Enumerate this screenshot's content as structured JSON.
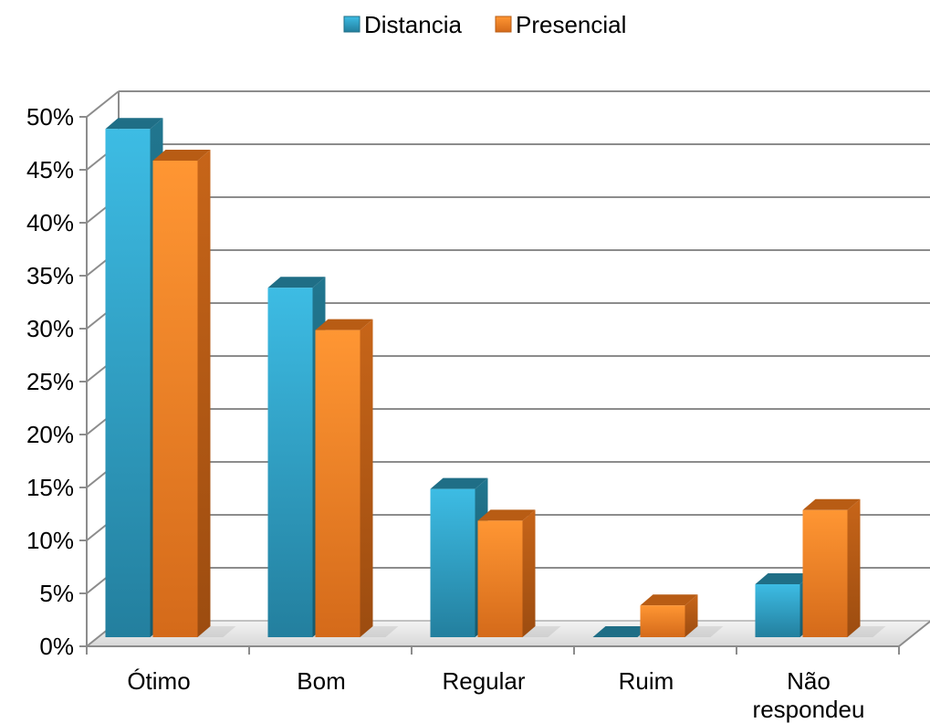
{
  "chart_data": {
    "type": "bar",
    "title": "",
    "xlabel": "",
    "ylabel": "",
    "ylim": [
      0,
      50
    ],
    "y_ticks": [
      "0%",
      "5%",
      "10%",
      "15%",
      "20%",
      "25%",
      "30%",
      "35%",
      "40%",
      "45%",
      "50%"
    ],
    "y_tick_values": [
      0,
      5,
      10,
      15,
      20,
      25,
      30,
      35,
      40,
      45,
      50
    ],
    "grid": true,
    "three_d": true,
    "legend_position": "top",
    "categories": [
      "Ótimo",
      "Bom",
      "Regular",
      "Ruim",
      "Não respondeu"
    ],
    "series": [
      {
        "name": "Distancia",
        "color": "#2E9FC4",
        "values": [
          48,
          33,
          14,
          0,
          5
        ]
      },
      {
        "name": "Presencial",
        "color": "#EE8424",
        "values": [
          45,
          29,
          11,
          3,
          12
        ]
      }
    ]
  }
}
